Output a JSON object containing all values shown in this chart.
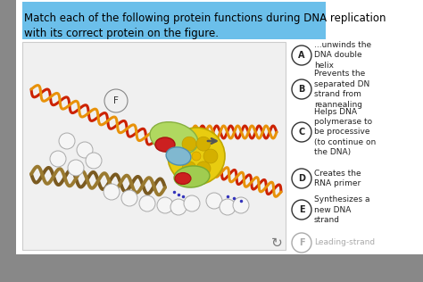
{
  "fig_w": 4.74,
  "fig_h": 3.16,
  "bg_color": "#b8b8b8",
  "title_text": "Match each of the following protein functions during DNA replication\nwith its correct protein on the figure.",
  "title_highlight": "#6bbfea",
  "title_fontsize": 8.5,
  "panel_bg": "#f5f5f5",
  "panel_border": "#cccccc",
  "options": [
    {
      "letter": "A",
      "text": "...unwinds the\nDNA double\nhelix"
    },
    {
      "letter": "B",
      "text": "Prevents the\nseparated DN\nstrand from\nreannealing"
    },
    {
      "letter": "C",
      "text": "Helps DNA\npolymerase to\nbe processive\n(to continue on\nthe DNA)"
    },
    {
      "letter": "D",
      "text": "Creates the\nRNA primer"
    },
    {
      "letter": "E",
      "text": "Synthesizes a\nnew DNA\nstrand"
    },
    {
      "letter": "F",
      "text": "Leading-strand",
      "faded": true
    }
  ],
  "helix_color1": "#cc2200",
  "helix_color2": "#e8920a",
  "brown_color1": "#7a5a20",
  "brown_color2": "#9a7a30",
  "yellow_color": "#e8cc10",
  "green_color": "#a0cc50",
  "red_prot": "#cc2020",
  "blue_prot": "#80b8d0",
  "ssb_color": "#cccccc"
}
